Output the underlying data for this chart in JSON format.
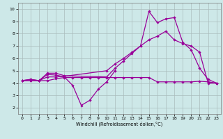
{
  "title": "",
  "xlabel": "Windchill (Refroidissement éolien,°C)",
  "xlim": [
    -0.5,
    23.5
  ],
  "ylim": [
    1.5,
    10.5
  ],
  "xticks": [
    0,
    1,
    2,
    3,
    4,
    5,
    6,
    7,
    8,
    9,
    10,
    11,
    12,
    13,
    14,
    15,
    16,
    17,
    18,
    19,
    20,
    21,
    22,
    23
  ],
  "yticks": [
    2,
    3,
    4,
    5,
    6,
    7,
    8,
    9,
    10
  ],
  "bg_color": "#cde8e8",
  "grid_color": "#aabcbc",
  "line_color": "#990099",
  "lines": [
    {
      "x": [
        0,
        1,
        2,
        3,
        4,
        5,
        6,
        7,
        8,
        9,
        10,
        11
      ],
      "y": [
        4.2,
        4.3,
        4.2,
        4.7,
        4.65,
        4.5,
        3.8,
        2.2,
        2.6,
        3.5,
        4.1,
        5.0
      ]
    },
    {
      "x": [
        0,
        1,
        2,
        3,
        4,
        5,
        6,
        7,
        8,
        9,
        10,
        11,
        12,
        13,
        14,
        15,
        16,
        17,
        18,
        19,
        20,
        21,
        22,
        23
      ],
      "y": [
        4.2,
        4.3,
        4.2,
        4.2,
        4.35,
        4.45,
        4.45,
        4.45,
        4.45,
        4.45,
        4.45,
        4.45,
        4.45,
        4.45,
        4.45,
        4.45,
        4.1,
        4.1,
        4.1,
        4.1,
        4.1,
        4.15,
        4.1,
        4.0
      ]
    },
    {
      "x": [
        0,
        1,
        2,
        3,
        4,
        5,
        10,
        11,
        12,
        13,
        14,
        15,
        16,
        17,
        18,
        19,
        20,
        21,
        22,
        23
      ],
      "y": [
        4.2,
        4.2,
        4.2,
        4.8,
        4.8,
        4.6,
        4.5,
        5.2,
        5.8,
        6.4,
        7.0,
        9.8,
        8.9,
        9.2,
        9.3,
        7.3,
        6.7,
        5.2,
        4.3,
        4.0
      ]
    },
    {
      "x": [
        0,
        1,
        2,
        3,
        4,
        5,
        10,
        11,
        12,
        13,
        14,
        15,
        16,
        17,
        18,
        19,
        20,
        21,
        22,
        23
      ],
      "y": [
        4.2,
        4.2,
        4.2,
        4.5,
        4.5,
        4.55,
        5.0,
        5.55,
        6.0,
        6.5,
        7.0,
        7.5,
        7.8,
        8.2,
        7.5,
        7.2,
        7.0,
        6.5,
        4.0,
        4.0
      ]
    }
  ]
}
